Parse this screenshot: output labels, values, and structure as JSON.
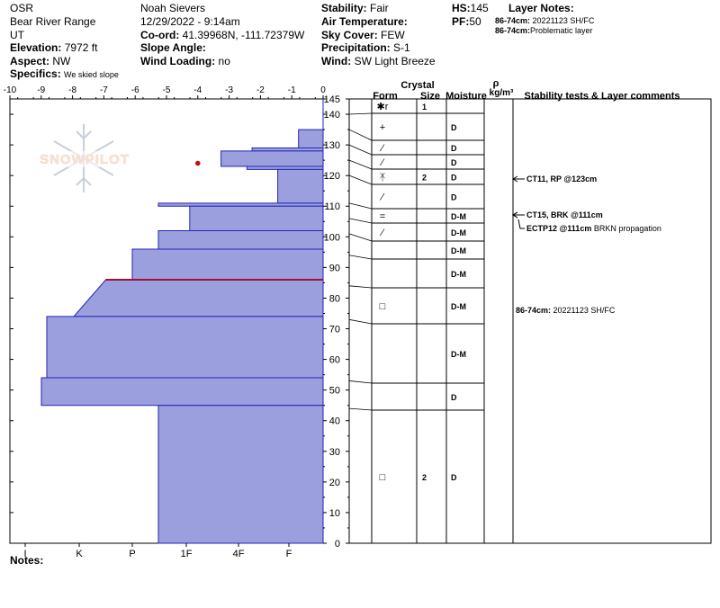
{
  "header": {
    "operation": "OSR",
    "range": "Bear River Range",
    "state": "UT",
    "elevation_label": "Elevation:",
    "elevation_value": "7972 ft",
    "aspect_label": "Aspect:",
    "aspect_value": "NW",
    "specifics_label": "Specifics:",
    "specifics_value": "We skied slope",
    "observer": "Noah Sievers",
    "datetime": "12/29/2022 - 9:14am",
    "coord_label": "Co-ord:",
    "coord_value": "41.39968N, -111.72379W",
    "slope_label": "Slope Angle:",
    "slope_value": "",
    "wind_loading_label": "Wind Loading:",
    "wind_loading_value": "no",
    "stability_label": "Stability:",
    "stability_value": "Fair",
    "air_temp_label": "Air Temperature:",
    "air_temp_value": "",
    "sky_label": "Sky Cover:",
    "sky_value": "FEW",
    "precip_label": "Precipitation:",
    "precip_value": "S-1",
    "wind_label": "Wind:",
    "wind_value": "SW Light Breeze",
    "hs_label": "HS:",
    "hs_value": "145",
    "pf_label": "PF:",
    "pf_value": "50",
    "layer_notes_label": "Layer Notes:",
    "layer_notes": [
      {
        "range": "86-74cm:",
        "text": "20221123 SH/FC"
      },
      {
        "range": "86-74cm:",
        "text": "Problematic layer"
      }
    ]
  },
  "logo_text": "SNOWPILOT",
  "notes_label": "Notes:",
  "table_headers": {
    "crystal": "Crystal",
    "form": "Form",
    "size": "Size",
    "moisture": "Moisture",
    "rho": "ρ",
    "density_unit": "kg/m³",
    "comments": "Stability tests & Layer comments"
  },
  "chart_data": {
    "type": "snow-profile",
    "temp_axis": {
      "ticks": [
        "-10",
        "-9",
        "-8",
        "-7",
        "-6",
        "-5",
        "-4",
        "-3",
        "-2",
        "-1",
        "0"
      ],
      "range": [
        -10,
        0
      ]
    },
    "height_axis": {
      "ticks": [
        "0",
        "10",
        "20",
        "30",
        "40",
        "50",
        "60",
        "70",
        "80",
        "90",
        "100",
        "110",
        "120",
        "130",
        "140",
        "145"
      ],
      "range": [
        0,
        145
      ]
    },
    "hardness_axis": {
      "ticks": [
        "I",
        "K",
        "P",
        "1F",
        "4F",
        "F"
      ]
    },
    "temperature_points": [
      {
        "temp": -4.0,
        "height": 124
      }
    ],
    "hardness_layers": [
      {
        "top": 145,
        "bottom": 135,
        "hardness": 1.0
      },
      {
        "top": 135,
        "bottom": 129,
        "hardness": 1.7
      },
      {
        "top": 129,
        "bottom": 128,
        "hardness": 2.7
      },
      {
        "top": 128,
        "bottom": 123,
        "hardness": 3.3
      },
      {
        "top": 123,
        "bottom": 122,
        "hardness": 2.8
      },
      {
        "top": 122,
        "bottom": 111,
        "hardness": 2.2
      },
      {
        "top": 111,
        "bottom": 110,
        "hardness": 4.5
      },
      {
        "top": 110,
        "bottom": 102,
        "hardness": 3.9
      },
      {
        "top": 102,
        "bottom": 96,
        "hardness": 4.5
      },
      {
        "top": 96,
        "bottom": 86,
        "hardness": 5.0
      },
      {
        "top": 86,
        "bottom": 74,
        "hardness": 5.5,
        "hardness_bottom": 6.1
      },
      {
        "top": 74,
        "bottom": 54,
        "hardness": 6.6
      },
      {
        "top": 54,
        "bottom": 45,
        "hardness": 6.7
      },
      {
        "top": 45,
        "bottom": 0,
        "hardness": 4.5
      }
    ],
    "critical_layer_height": 86,
    "layers_table": [
      {
        "top": 145,
        "bottom": 140,
        "form": "✱r",
        "size": "1",
        "moisture": ""
      },
      {
        "top": 140,
        "bottom": 135,
        "form": "+",
        "size": "",
        "moisture": "D"
      },
      {
        "top": 135,
        "bottom": 130,
        "form": "⁄",
        "size": "",
        "moisture": "D"
      },
      {
        "top": 130,
        "bottom": 125,
        "form": "⁄",
        "size": "",
        "moisture": "D"
      },
      {
        "top": 125,
        "bottom": 120,
        "form": "ᛡ",
        "size": "2",
        "moisture": "D"
      },
      {
        "top": 120,
        "bottom": 111,
        "form": "⁄",
        "size": "",
        "moisture": "D"
      },
      {
        "top": 111,
        "bottom": 106,
        "form": "=",
        "size": "",
        "moisture": "D-M"
      },
      {
        "top": 106,
        "bottom": 101,
        "form": "⁄",
        "size": "",
        "moisture": "D-M"
      },
      {
        "top": 101,
        "bottom": 94,
        "form": "",
        "size": "",
        "moisture": "D-M"
      },
      {
        "top": 94,
        "bottom": 84,
        "form": "",
        "size": "",
        "moisture": "D-M"
      },
      {
        "top": 84,
        "bottom": 73,
        "form": "□",
        "size": "",
        "moisture": "D-M"
      },
      {
        "top": 73,
        "bottom": 53,
        "form": "",
        "size": "",
        "moisture": "D-M"
      },
      {
        "top": 53,
        "bottom": 44,
        "form": "",
        "size": "",
        "moisture": "D"
      },
      {
        "top": 44,
        "bottom": 0,
        "form": "□",
        "size": "2",
        "moisture": "D"
      }
    ],
    "comments": [
      {
        "height": 123,
        "code": "CT11, RP @123cm",
        "extra": ""
      },
      {
        "height": 111,
        "code": "CT15, BRK @111cm",
        "extra": ""
      },
      {
        "height": 106,
        "code": "ECTP12 @111cm",
        "extra": "BRKN propagation"
      },
      {
        "height": 79,
        "code": "86-74cm:",
        "extra": "20221123 SH/FC"
      }
    ]
  }
}
